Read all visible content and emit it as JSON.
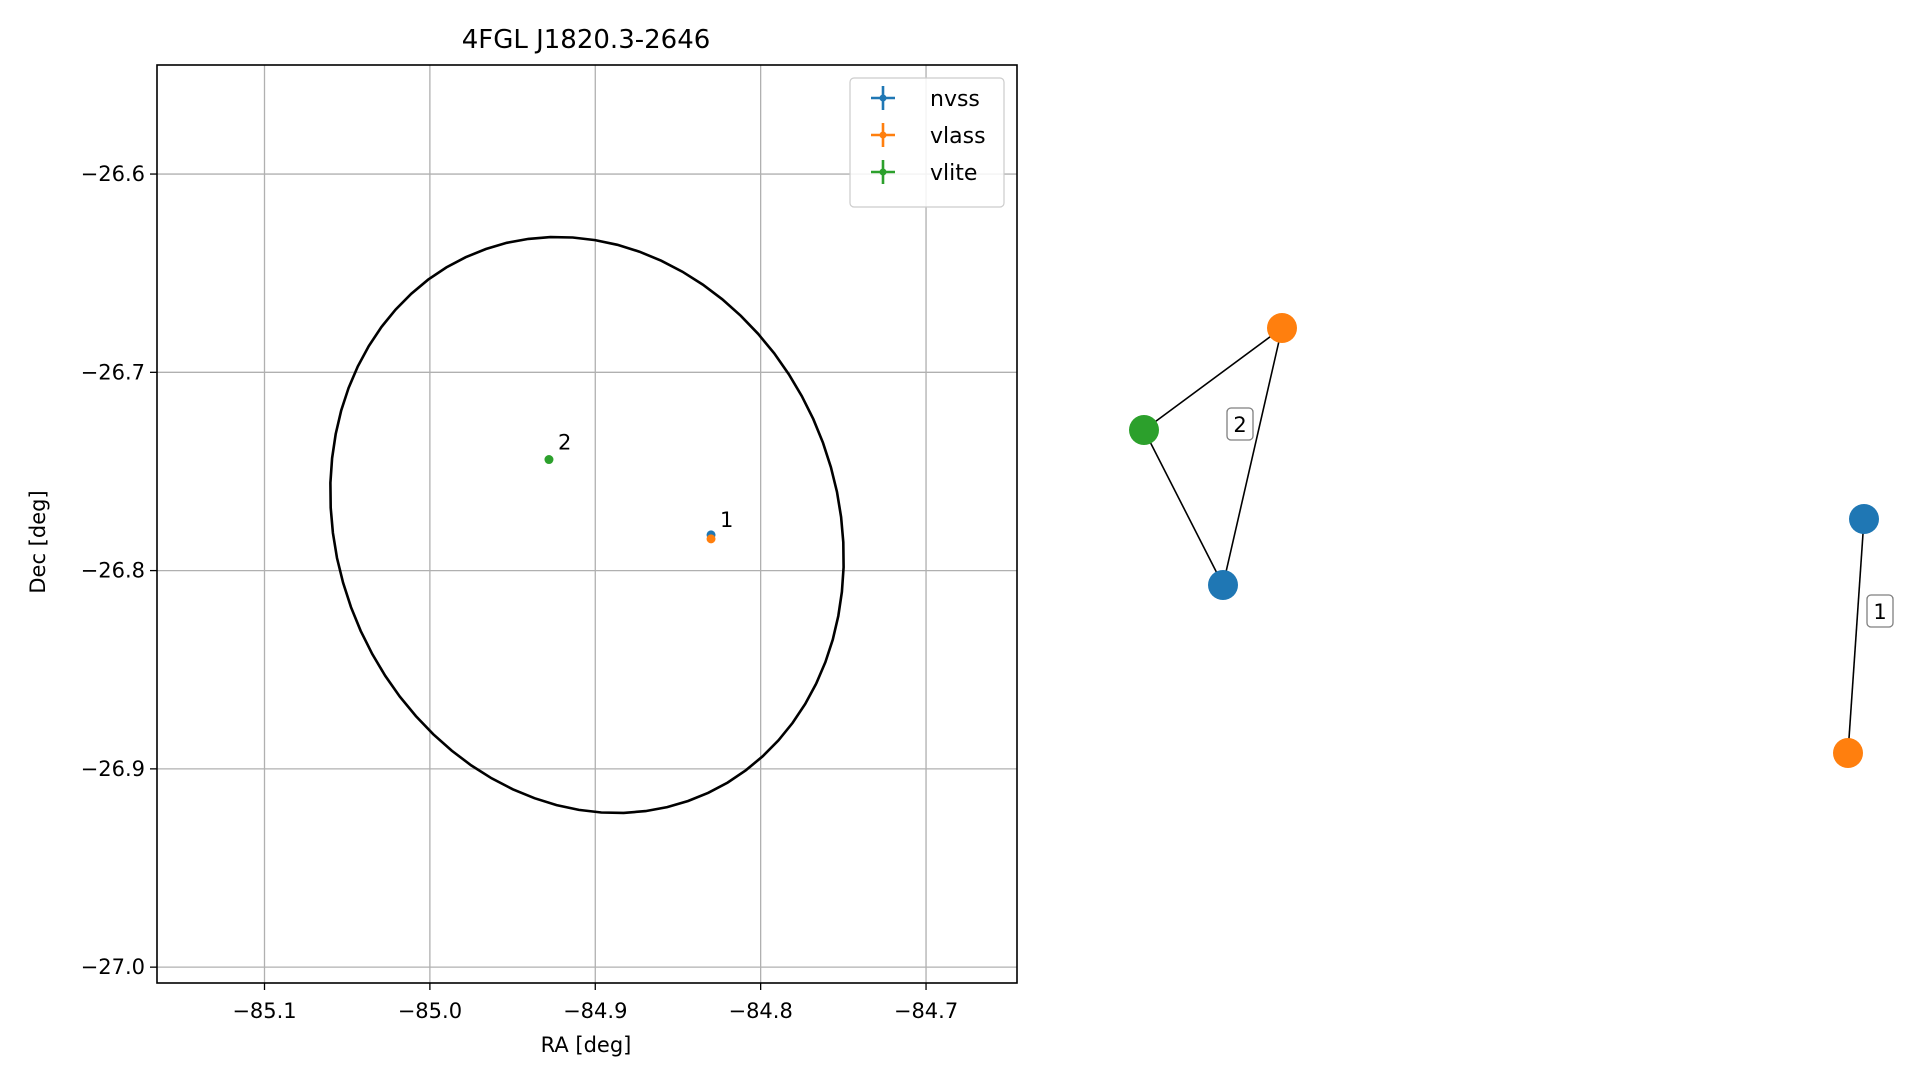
{
  "figure": {
    "title": "4FGL J1820.3-2646"
  },
  "chart_data": [
    {
      "type": "scatter",
      "title": "4FGL J1820.3-2646",
      "xlabel": "RA [deg]",
      "ylabel": "Dec [deg]",
      "xlim": [
        -85.165,
        -84.645
      ],
      "ylim": [
        -27.008,
        -26.545
      ],
      "xticks": [
        -85.1,
        -85.0,
        -84.9,
        -84.8,
        -84.7
      ],
      "xtick_labels": [
        "−85.1",
        "−85.0",
        "−84.9",
        "−84.8",
        "−84.7"
      ],
      "yticks": [
        -26.6,
        -26.7,
        -26.8,
        -26.9,
        -27.0
      ],
      "ytick_labels": [
        "−26.6",
        "−26.7",
        "−26.8",
        "−26.9",
        "−27.0"
      ],
      "grid": true,
      "legend_position": "top-right",
      "series": [
        {
          "name": "nvss",
          "color": "#1f77b4",
          "points": [
            [
              -84.83,
              -26.782
            ]
          ]
        },
        {
          "name": "vlass",
          "color": "#ff7f0e",
          "points": [
            [
              -84.83,
              -26.784
            ]
          ]
        },
        {
          "name": "vlite",
          "color": "#2ca02c",
          "points": [
            [
              -84.928,
              -26.744
            ]
          ]
        }
      ],
      "annotations": [
        {
          "text": "1",
          "x": -84.83,
          "y": -26.783
        },
        {
          "text": "2",
          "x": -84.928,
          "y": -26.744
        }
      ],
      "ellipse": {
        "center": [
          -84.905,
          -26.777
        ],
        "semi_axis_ra": 0.16,
        "semi_axis_dec": 0.14,
        "rotation_deg": -30,
        "color": "#000000"
      }
    },
    {
      "type": "network",
      "components": [
        {
          "label": "2",
          "nodes": [
            {
              "survey": "vlite",
              "color": "#2ca02c"
            },
            {
              "survey": "vlass",
              "color": "#ff7f0e"
            },
            {
              "survey": "nvss",
              "color": "#1f77b4"
            }
          ],
          "edges": [
            [
              0,
              1
            ],
            [
              0,
              2
            ],
            [
              1,
              2
            ]
          ]
        },
        {
          "label": "1",
          "nodes": [
            {
              "survey": "nvss",
              "color": "#1f77b4"
            },
            {
              "survey": "vlass",
              "color": "#ff7f0e"
            }
          ],
          "edges": [
            [
              0,
              1
            ]
          ]
        }
      ]
    }
  ]
}
